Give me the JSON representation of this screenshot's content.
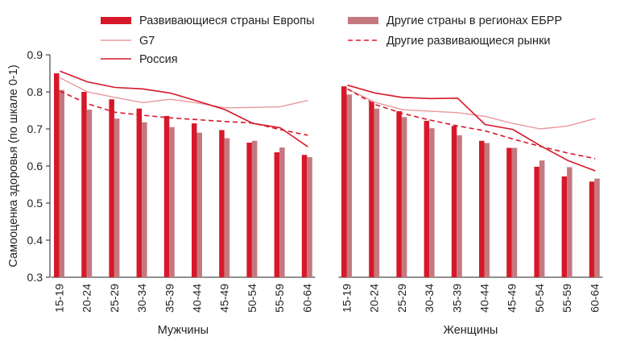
{
  "chart_data": {
    "type": "bar",
    "ylabel": "Самооценка здоровья (по шкале 0-1)",
    "ylim": [
      0.3,
      0.9
    ],
    "yticks": [
      "0.3",
      "0.4",
      "0.5",
      "0.6",
      "0.7",
      "0.8",
      "0.9"
    ],
    "yticks_values": [
      0.3,
      0.4,
      0.5,
      0.6,
      0.7,
      0.8,
      0.9
    ],
    "grid": false,
    "legend_position": "top",
    "colors": {
      "emerging_europe": "#d7182a",
      "other_ebrd": "#c4797f",
      "g7": "#e8999c",
      "russia": "#d7182a",
      "other_emerging": "#d7182a",
      "axis": "#231f20"
    },
    "categories": [
      "15-19",
      "20-24",
      "25-29",
      "30-34",
      "35-39",
      "40-44",
      "45-49",
      "50-54",
      "55-59",
      "60-64"
    ],
    "legend": [
      {
        "key": "emerging_europe",
        "label": "Развивающиеся страны Европы",
        "kind": "bar"
      },
      {
        "key": "other_ebrd",
        "label": "Другие страны в регионах ЕБРР",
        "kind": "bar"
      },
      {
        "key": "g7",
        "label": "G7",
        "kind": "line"
      },
      {
        "key": "other_emerging",
        "label": "Другие развивающиеся рынки",
        "kind": "dashed"
      },
      {
        "key": "russia",
        "label": "Россия",
        "kind": "line"
      }
    ],
    "panels": [
      {
        "title": "Мужчины",
        "series": [
          {
            "key": "emerging_europe",
            "name": "Развивающиеся страны Европы",
            "values": [
              0.85,
              0.8,
              0.78,
              0.755,
              0.735,
              0.715,
              0.697,
              0.663,
              0.637,
              0.63
            ]
          },
          {
            "key": "other_ebrd",
            "name": "Другие страны в регионах ЕБРР",
            "values": [
              0.805,
              0.752,
              0.728,
              0.718,
              0.705,
              0.69,
              0.675,
              0.668,
              0.65,
              0.624
            ]
          },
          {
            "key": "g7",
            "name": "G7",
            "values": [
              0.838,
              0.8,
              0.785,
              0.771,
              0.78,
              0.77,
              0.757,
              0.758,
              0.76,
              0.777
            ]
          },
          {
            "key": "russia",
            "name": "Россия",
            "values": [
              0.856,
              0.827,
              0.812,
              0.808,
              0.797,
              0.775,
              0.752,
              0.715,
              0.703,
              0.652
            ]
          },
          {
            "key": "other_emerging",
            "name": "Другие развивающиеся рынки",
            "values": [
              0.802,
              0.768,
              0.745,
              0.737,
              0.73,
              0.725,
              0.72,
              0.716,
              0.698,
              0.683
            ]
          }
        ]
      },
      {
        "title": "Женщины",
        "series": [
          {
            "key": "emerging_europe",
            "name": "Развивающиеся страны Европы",
            "values": [
              0.815,
              0.773,
              0.748,
              0.722,
              0.708,
              0.668,
              0.649,
              0.598,
              0.572,
              0.558
            ]
          },
          {
            "key": "other_ebrd",
            "name": "Другие страны в регионах ЕБРР",
            "values": [
              0.793,
              0.755,
              0.732,
              0.702,
              0.683,
              0.662,
              0.649,
              0.615,
              0.597,
              0.566
            ]
          },
          {
            "key": "g7",
            "name": "G7",
            "values": [
              0.808,
              0.772,
              0.752,
              0.748,
              0.744,
              0.734,
              0.715,
              0.7,
              0.708,
              0.728
            ]
          },
          {
            "key": "russia",
            "name": "Россия",
            "values": [
              0.818,
              0.797,
              0.785,
              0.782,
              0.783,
              0.712,
              0.699,
              0.655,
              0.615,
              0.587
            ]
          },
          {
            "key": "other_emerging",
            "name": "Другие развивающиеся рынки",
            "values": [
              0.808,
              0.766,
              0.742,
              0.724,
              0.708,
              0.695,
              0.673,
              0.653,
              0.635,
              0.62
            ]
          }
        ]
      }
    ]
  }
}
